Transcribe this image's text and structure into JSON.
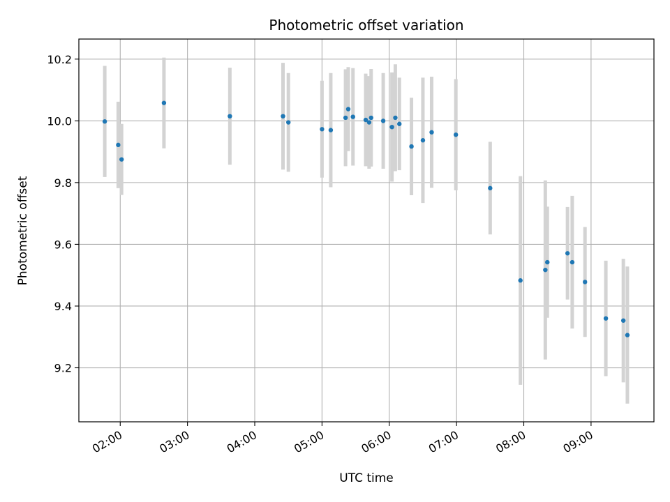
{
  "chart_data": {
    "type": "scatter",
    "title": "Photometric offset variation",
    "xlabel": "UTC time",
    "ylabel": "Photometric offset",
    "x_unit": "hours UTC",
    "xlim": [
      1.385,
      9.935
    ],
    "ylim": [
      9.025,
      10.265
    ],
    "x_ticks": [
      {
        "value": 2,
        "label": "02:00"
      },
      {
        "value": 3,
        "label": "03:00"
      },
      {
        "value": 4,
        "label": "04:00"
      },
      {
        "value": 5,
        "label": "05:00"
      },
      {
        "value": 6,
        "label": "06:00"
      },
      {
        "value": 7,
        "label": "07:00"
      },
      {
        "value": 8,
        "label": "08:00"
      },
      {
        "value": 9,
        "label": "09:00"
      }
    ],
    "y_ticks": [
      {
        "value": 9.2,
        "label": "9.2"
      },
      {
        "value": 9.4,
        "label": "9.4"
      },
      {
        "value": 9.6,
        "label": "9.6"
      },
      {
        "value": 9.8,
        "label": "9.8"
      },
      {
        "value": 10.0,
        "label": "10.0"
      },
      {
        "value": 10.2,
        "label": "10.2"
      }
    ],
    "grid": true,
    "x_tick_rotation_deg": 30,
    "colors": {
      "point": "#1f77b4",
      "errorbar": "#d3d3d3",
      "grid": "#b0b0b0",
      "axes": "#000000"
    },
    "points": [
      {
        "x": 1.77,
        "y": 9.998,
        "err": 0.18
      },
      {
        "x": 1.97,
        "y": 9.922,
        "err": 0.14
      },
      {
        "x": 2.02,
        "y": 9.875,
        "err": 0.115
      },
      {
        "x": 2.65,
        "y": 10.058,
        "err": 0.147
      },
      {
        "x": 3.63,
        "y": 10.015,
        "err": 0.157
      },
      {
        "x": 4.42,
        "y": 10.015,
        "err": 0.173
      },
      {
        "x": 4.5,
        "y": 9.995,
        "err": 0.16
      },
      {
        "x": 5.0,
        "y": 9.973,
        "err": 0.157
      },
      {
        "x": 5.13,
        "y": 9.97,
        "err": 0.185
      },
      {
        "x": 5.35,
        "y": 10.01,
        "err": 0.157
      },
      {
        "x": 5.39,
        "y": 10.038,
        "err": 0.136
      },
      {
        "x": 5.46,
        "y": 10.013,
        "err": 0.158
      },
      {
        "x": 5.65,
        "y": 10.003,
        "err": 0.15
      },
      {
        "x": 5.7,
        "y": 9.995,
        "err": 0.15
      },
      {
        "x": 5.73,
        "y": 10.01,
        "err": 0.158
      },
      {
        "x": 5.91,
        "y": 10.0,
        "err": 0.155
      },
      {
        "x": 6.04,
        "y": 9.98,
        "err": 0.177
      },
      {
        "x": 6.09,
        "y": 10.01,
        "err": 0.173
      },
      {
        "x": 6.15,
        "y": 9.99,
        "err": 0.15
      },
      {
        "x": 6.33,
        "y": 9.917,
        "err": 0.158
      },
      {
        "x": 6.5,
        "y": 9.937,
        "err": 0.203
      },
      {
        "x": 6.63,
        "y": 9.963,
        "err": 0.18
      },
      {
        "x": 6.99,
        "y": 9.955,
        "err": 0.18
      },
      {
        "x": 7.5,
        "y": 9.782,
        "err": 0.15
      },
      {
        "x": 7.95,
        "y": 9.483,
        "err": 0.338
      },
      {
        "x": 8.32,
        "y": 9.517,
        "err": 0.29
      },
      {
        "x": 8.35,
        "y": 9.542,
        "err": 0.18
      },
      {
        "x": 8.65,
        "y": 9.571,
        "err": 0.15
      },
      {
        "x": 8.72,
        "y": 9.542,
        "err": 0.215
      },
      {
        "x": 8.91,
        "y": 9.478,
        "err": 0.178
      },
      {
        "x": 9.22,
        "y": 9.36,
        "err": 0.187
      },
      {
        "x": 9.48,
        "y": 9.353,
        "err": 0.2
      },
      {
        "x": 9.54,
        "y": 9.306,
        "err": 0.222
      }
    ]
  }
}
